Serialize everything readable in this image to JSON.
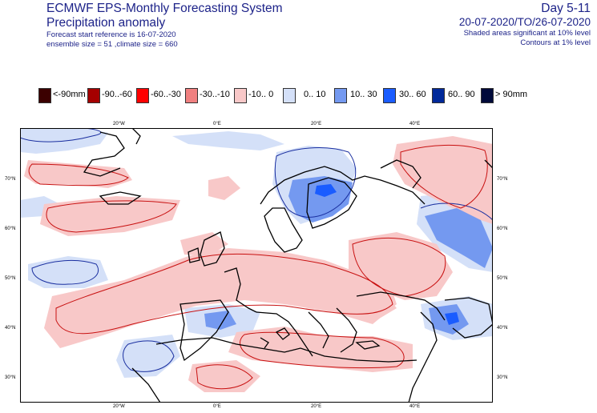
{
  "header": {
    "title": "ECMWF EPS-Monthly Forecasting System",
    "subtitle": "Precipitation anomaly",
    "start_ref": "Forecast start reference is 16-07-2020",
    "ensemble": "ensemble size = 51  ,climate size = 660",
    "day_range": "Day 5-11",
    "date_range": "20-07-2020/TO/26-07-2020",
    "sig_note": "Shaded areas significant at 10% level",
    "contour_note": "Contours at 1% level"
  },
  "legend": {
    "items": [
      {
        "label": "<-90mm",
        "color": "#3b0000"
      },
      {
        "label": "-90..-60",
        "color": "#a50000"
      },
      {
        "label": "-60..-30",
        "color": "#ff0000"
      },
      {
        "label": "-30..-10",
        "color": "#f08080"
      },
      {
        "label": "-10..  0",
        "color": "#f8c8c8"
      },
      {
        "label": "0.. 10",
        "color": "#d4e0f8"
      },
      {
        "label": "10.. 30",
        "color": "#7499f0"
      },
      {
        "label": "30.. 60",
        "color": "#1a5cff"
      },
      {
        "label": "60.. 90",
        "color": "#00299a"
      },
      {
        "label": "> 90mm",
        "color": "#000a3a"
      }
    ]
  },
  "map": {
    "lon_labels": [
      "20°W",
      "0°E",
      "20°E",
      "40°E"
    ],
    "lat_labels": [
      "70°N",
      "60°N",
      "50°N",
      "40°N",
      "30°N"
    ],
    "colors": {
      "pos_light": "#d4e0f8",
      "pos_mid": "#7499f0",
      "pos_strong": "#1a5cff",
      "neg_light": "#f8c8c8",
      "contour_blue": "#1a2fa0",
      "contour_red": "#c81010",
      "coast": "#000000"
    }
  }
}
